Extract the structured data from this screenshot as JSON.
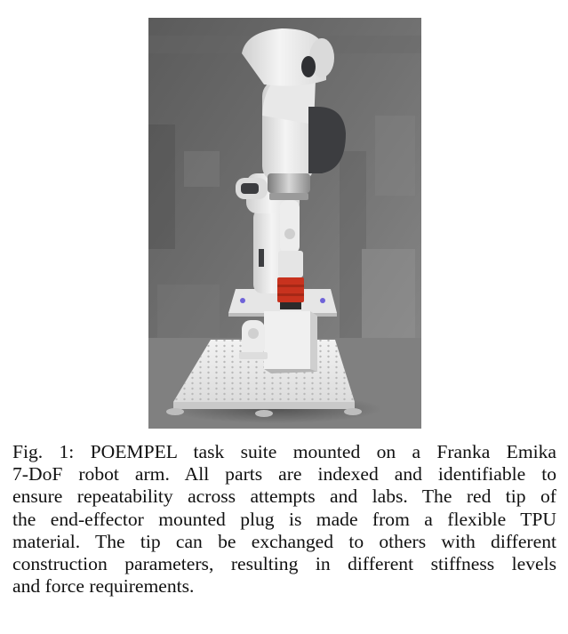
{
  "figure": {
    "caption_lines": [
      "Fig. 1: POEMPEL task suite mounted on a Franka Emika",
      "7-DoF robot arm. All parts are indexed and identifiable to",
      "ensure repeatability across attempts and labs. The red tip of",
      "the end-effector mounted plug is made from a flexible TPU",
      "material. The tip can be exchanged to others with different",
      "construction parameters, resulting in different stiffness levels",
      "and force requirements."
    ]
  },
  "colors": {
    "background": "#6b6b6b",
    "arm_white": "#eeeeee",
    "arm_dark": "#3c3d40",
    "tip_red": "#c8321e",
    "accent_blue": "#6f63d8"
  }
}
